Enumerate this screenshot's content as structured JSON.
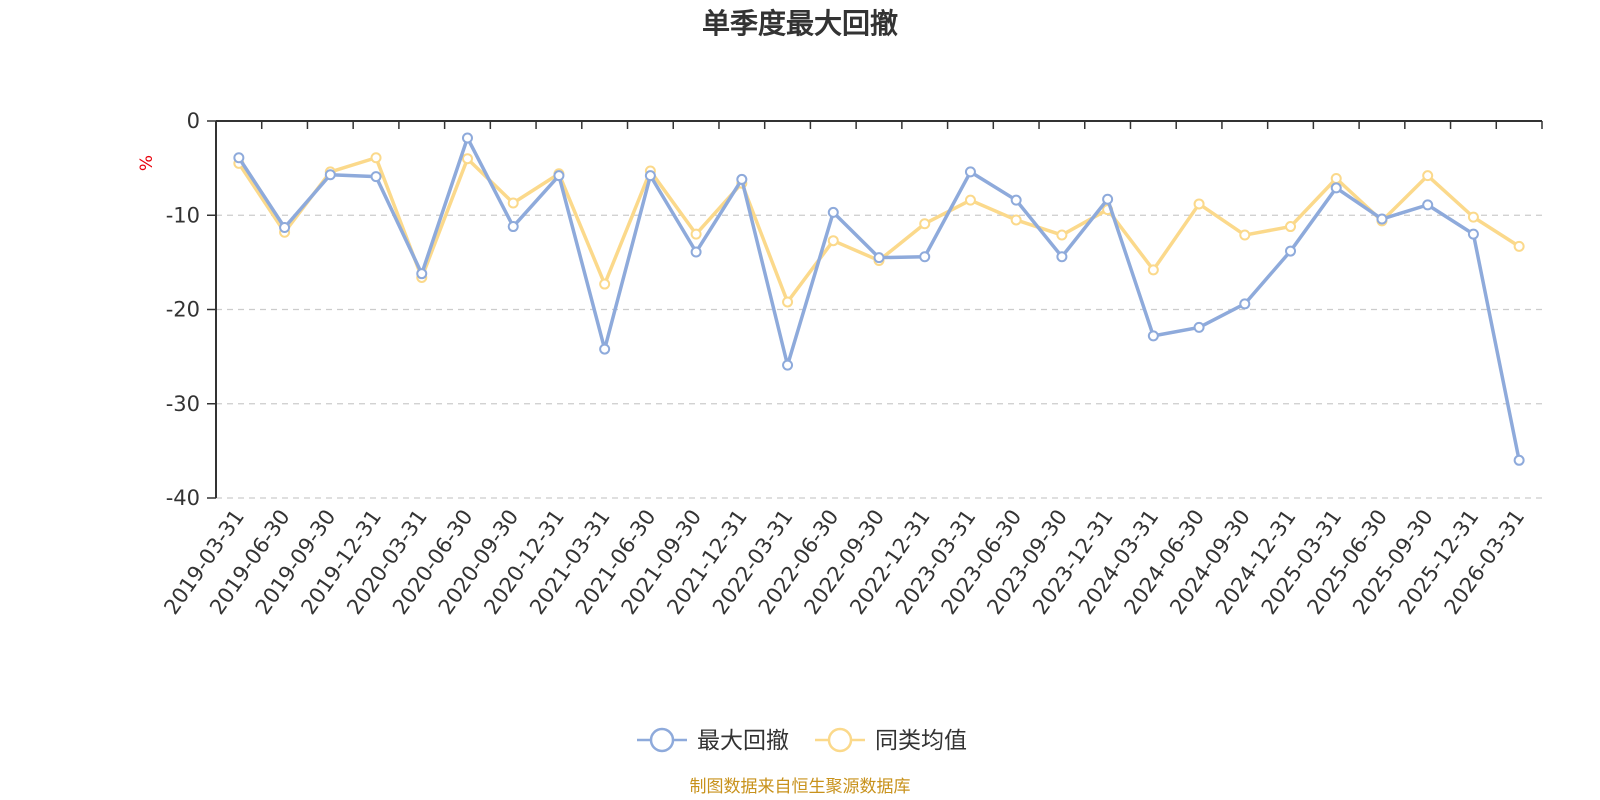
{
  "chart_data": {
    "type": "line",
    "title": "单季度最大回撤",
    "ylabel": "%",
    "xlabel": "",
    "ylim": [
      -40,
      0
    ],
    "yticks": [
      0,
      -10,
      -20,
      -30,
      -40
    ],
    "grid": true,
    "legend_position": "bottom-center",
    "categories": [
      "2019-03-31",
      "2019-06-30",
      "2019-09-30",
      "2019-12-31",
      "2020-03-31",
      "2020-06-30",
      "2020-09-30",
      "2020-12-31",
      "2021-03-31",
      "2021-06-30",
      "2021-09-30",
      "2021-12-31",
      "2022-03-31",
      "2022-06-30",
      "2022-09-30",
      "2022-12-31",
      "2023-03-31",
      "2023-06-30",
      "2023-09-30",
      "2023-12-31",
      "2024-03-31",
      "2024-06-30",
      "2024-09-30",
      "2024-12-31",
      "2025-03-31",
      "2025-06-30",
      "2025-09-30",
      "2025-12-31",
      "2026-03-31"
    ],
    "series": [
      {
        "name": "最大回撤",
        "color": "#8eaadb",
        "values": [
          -3.9,
          -11.3,
          -5.7,
          -5.9,
          -16.2,
          -1.8,
          -11.2,
          -5.8,
          -24.2,
          -5.8,
          -13.9,
          -6.2,
          -25.9,
          -9.7,
          -14.5,
          -14.4,
          -5.4,
          -8.4,
          -14.4,
          -8.3,
          -22.8,
          -21.9,
          -19.4,
          -13.8,
          -7.1,
          -10.4,
          -8.9,
          -12.0,
          -36.0
        ]
      },
      {
        "name": "同类均值",
        "color": "#fbd98b",
        "values": [
          -4.5,
          -11.8,
          -5.4,
          -3.9,
          -16.6,
          -4.0,
          -8.7,
          -5.6,
          -17.3,
          -5.3,
          -12.0,
          -6.6,
          -19.2,
          -12.7,
          -14.8,
          -10.9,
          -8.4,
          -10.5,
          -12.1,
          -9.4,
          -15.8,
          -8.8,
          -12.1,
          -11.2,
          -6.1,
          -10.6,
          -5.8,
          -10.2,
          -13.3
        ]
      }
    ],
    "source": "制图数据来自恒生聚源数据库"
  }
}
